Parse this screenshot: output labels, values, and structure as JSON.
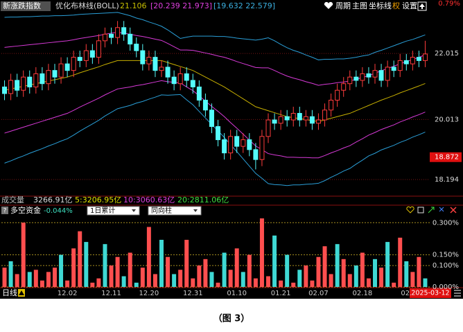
{
  "header": {
    "index_name": "新涨跌指数",
    "indicator": "优化布林线(BOLL)",
    "mid": "21.106",
    "inner": "[20.239  21.973]",
    "outer": "[19.632  22.579]",
    "menu": [
      "周期",
      "主图",
      "坐标线",
      "权",
      "设置"
    ],
    "corner_value": "0.79%"
  },
  "volume_bar": {
    "label": "成交量",
    "total": "3266.91亿",
    "ma5": "5:3206.95亿",
    "ma10": "10:3060.63亿",
    "ma20": "20:2811.06亿"
  },
  "fund_bar": {
    "help": "?",
    "name": "多空资金",
    "value": "-0.044%",
    "mode": "1日累计",
    "style": "同向柱"
  },
  "footer": {
    "period": "日线",
    "date": "2025-03-12",
    "caption": "（图 3）"
  },
  "chart_data": [
    {
      "type": "candlestick",
      "up_color": "#ff3c3c",
      "down_color": "#54fcfc",
      "grid": true,
      "categories": [
        null,
        null,
        null,
        null,
        null,
        null,
        null,
        null,
        null,
        null,
        "12.02",
        null,
        null,
        null,
        null,
        null,
        null,
        "12.11",
        null,
        null,
        null,
        null,
        null,
        "12.20",
        null,
        null,
        null,
        null,
        null,
        null,
        "12.31",
        null,
        null,
        null,
        null,
        null,
        null,
        "01.10",
        null,
        null,
        null,
        null,
        null,
        null,
        "01.21",
        null,
        null,
        null,
        null,
        null,
        "02.07",
        null,
        null,
        null,
        null,
        null,
        null,
        "02.18",
        null,
        null,
        null,
        null,
        null,
        null,
        "02.",
        null,
        null,
        null
      ],
      "open": [
        21.0,
        20.8,
        21.2,
        20.9,
        21.3,
        21.0,
        21.4,
        21.1,
        21.5,
        21.3,
        21.7,
        21.5,
        21.9,
        21.8,
        22.1,
        21.9,
        22.4,
        22.6,
        22.5,
        22.8,
        22.6,
        22.3,
        22.1,
        21.7,
        21.9,
        21.5,
        21.6,
        21.3,
        21.1,
        21.4,
        21.2,
        21.0,
        20.6,
        20.3,
        19.8,
        19.4,
        19.0,
        19.5,
        19.2,
        19.4,
        19.1,
        18.8,
        19.5,
        20.0,
        19.9,
        20.1,
        20.0,
        20.2,
        20.0,
        20.1,
        19.9,
        20.0,
        20.3,
        20.6,
        20.9,
        21.1,
        21.3,
        21.2,
        21.4,
        21.3,
        21.5,
        21.2,
        21.6,
        21.5,
        21.8,
        21.7,
        21.9,
        21.8
      ],
      "high": [
        21.2,
        21.4,
        21.4,
        21.5,
        21.5,
        21.6,
        21.6,
        21.7,
        21.7,
        21.9,
        21.9,
        22.1,
        22.1,
        22.3,
        22.3,
        22.6,
        22.8,
        22.8,
        23.0,
        23.0,
        22.8,
        22.5,
        22.3,
        22.1,
        22.1,
        21.8,
        21.8,
        21.5,
        21.6,
        21.6,
        21.4,
        21.2,
        20.8,
        20.5,
        20.0,
        19.6,
        19.7,
        19.7,
        19.6,
        19.6,
        19.3,
        19.7,
        20.2,
        20.2,
        20.3,
        20.3,
        20.4,
        20.4,
        20.3,
        20.3,
        20.2,
        20.5,
        20.8,
        21.1,
        21.3,
        21.5,
        21.5,
        21.6,
        21.6,
        21.7,
        21.7,
        21.8,
        21.8,
        22.0,
        22.0,
        22.1,
        22.1,
        22.4
      ],
      "low": [
        20.6,
        20.6,
        20.7,
        20.7,
        20.8,
        20.8,
        20.9,
        20.9,
        21.1,
        21.1,
        21.3,
        21.3,
        21.6,
        21.6,
        21.7,
        21.7,
        22.2,
        22.3,
        22.3,
        22.4,
        22.1,
        21.9,
        21.5,
        21.5,
        21.3,
        21.3,
        21.1,
        20.9,
        20.9,
        21.0,
        20.8,
        20.4,
        20.1,
        19.6,
        19.2,
        18.8,
        18.8,
        19.0,
        19.0,
        18.9,
        18.5,
        18.6,
        19.3,
        19.7,
        19.7,
        19.8,
        19.8,
        19.8,
        19.8,
        19.7,
        19.7,
        19.8,
        20.1,
        20.4,
        20.7,
        20.9,
        21.0,
        21.0,
        21.1,
        21.1,
        21.0,
        21.0,
        21.3,
        21.3,
        21.5,
        21.5,
        21.6,
        21.6
      ],
      "close": [
        20.8,
        21.2,
        20.9,
        21.3,
        21.0,
        21.4,
        21.1,
        21.5,
        21.3,
        21.7,
        21.5,
        21.9,
        21.8,
        22.1,
        21.9,
        22.4,
        22.6,
        22.5,
        22.8,
        22.6,
        22.3,
        22.1,
        21.7,
        21.9,
        21.5,
        21.6,
        21.3,
        21.1,
        21.4,
        21.2,
        21.0,
        20.6,
        20.3,
        19.8,
        19.4,
        19.0,
        19.5,
        19.2,
        19.4,
        19.1,
        18.8,
        19.5,
        20.0,
        19.9,
        20.1,
        20.0,
        20.2,
        20.0,
        20.1,
        19.9,
        20.0,
        20.3,
        20.6,
        20.9,
        21.1,
        21.3,
        21.2,
        21.4,
        21.3,
        21.5,
        21.2,
        21.6,
        21.5,
        21.8,
        21.7,
        21.9,
        21.8,
        22.0
      ],
      "series": [
        {
          "color": "#2a9fd8",
          "values": [
            23.11,
            23.12,
            23.12,
            23.13,
            23.13,
            23.14,
            23.15,
            23.15,
            23.16,
            23.16,
            23.17,
            23.18,
            23.2,
            23.21,
            23.22,
            23.23,
            23.24,
            23.25,
            23.26,
            23.21,
            23.16,
            23.09,
            23.04,
            22.97,
            22.91,
            22.84,
            22.73,
            22.6,
            22.47,
            22.51,
            22.54,
            22.54,
            22.54,
            22.54,
            22.53,
            22.53,
            22.51,
            22.48,
            22.46,
            22.44,
            22.42,
            22.45,
            22.49,
            22.4,
            22.29,
            22.19,
            22.11,
            22.05,
            21.97,
            21.9,
            21.82,
            21.84,
            21.84,
            21.85,
            21.85,
            21.87,
            21.9,
            21.94,
            21.97,
            22.05,
            22.11,
            22.18,
            22.25,
            22.32,
            22.39,
            22.44,
            22.51,
            22.579
          ]
        },
        {
          "color": "#d83ad8",
          "values": [
            22.2,
            22.22,
            22.24,
            22.26,
            22.28,
            22.3,
            22.32,
            22.34,
            22.36,
            22.38,
            22.4,
            22.43,
            22.47,
            22.5,
            22.53,
            22.56,
            22.6,
            22.63,
            22.66,
            22.63,
            22.6,
            22.56,
            22.53,
            22.49,
            22.45,
            22.41,
            22.32,
            22.22,
            22.12,
            22.12,
            22.11,
            22.07,
            22.03,
            21.99,
            21.94,
            21.9,
            21.84,
            21.77,
            21.71,
            21.65,
            21.59,
            21.58,
            21.58,
            21.5,
            21.41,
            21.33,
            21.27,
            21.22,
            21.16,
            21.11,
            21.05,
            21.08,
            21.1,
            21.13,
            21.15,
            21.18,
            21.23,
            21.29,
            21.34,
            21.42,
            21.49,
            21.56,
            21.63,
            21.7,
            21.77,
            21.83,
            21.9,
            21.973
          ]
        },
        {
          "color": "#c8b000",
          "values": [
            20.9,
            20.94,
            20.98,
            21.02,
            21.06,
            21.1,
            21.14,
            21.18,
            21.22,
            21.26,
            21.3,
            21.36,
            21.43,
            21.49,
            21.55,
            21.61,
            21.68,
            21.74,
            21.8,
            21.8,
            21.8,
            21.8,
            21.8,
            21.8,
            21.8,
            21.8,
            21.74,
            21.68,
            21.62,
            21.56,
            21.5,
            21.4,
            21.3,
            21.2,
            21.1,
            21.0,
            20.88,
            20.76,
            20.64,
            20.52,
            20.4,
            20.34,
            20.28,
            20.22,
            20.16,
            20.1,
            20.07,
            20.04,
            20.01,
            19.98,
            19.95,
            20.0,
            20.05,
            20.1,
            20.15,
            20.2,
            20.28,
            20.36,
            20.44,
            20.52,
            20.6,
            20.67,
            20.74,
            20.82,
            20.89,
            20.96,
            21.03,
            21.106
          ]
        },
        {
          "color": "#d83ad8",
          "values": [
            19.6,
            19.66,
            19.72,
            19.78,
            19.84,
            19.9,
            19.96,
            20.02,
            20.08,
            20.14,
            20.2,
            20.29,
            20.39,
            20.48,
            20.57,
            20.66,
            20.76,
            20.85,
            20.94,
            20.97,
            21.0,
            21.04,
            21.07,
            21.11,
            21.15,
            21.19,
            21.16,
            21.14,
            21.12,
            21.0,
            20.89,
            20.73,
            20.57,
            20.41,
            20.26,
            20.1,
            19.92,
            19.75,
            19.57,
            19.39,
            19.21,
            19.1,
            18.98,
            18.94,
            18.91,
            18.87,
            18.87,
            18.86,
            18.86,
            18.85,
            18.85,
            18.92,
            19.0,
            19.07,
            19.15,
            19.22,
            19.33,
            19.43,
            19.54,
            19.62,
            19.71,
            19.78,
            19.85,
            19.94,
            20.01,
            20.09,
            20.16,
            20.239
          ]
        },
        {
          "color": "#2a9fd8",
          "values": [
            18.69,
            18.76,
            18.84,
            18.91,
            18.99,
            19.06,
            19.13,
            19.21,
            19.28,
            19.36,
            19.43,
            19.54,
            19.66,
            19.77,
            19.88,
            19.99,
            20.12,
            20.23,
            20.34,
            20.39,
            20.44,
            20.51,
            20.56,
            20.63,
            20.69,
            20.76,
            20.75,
            20.76,
            20.77,
            20.61,
            20.46,
            20.26,
            20.06,
            19.86,
            19.67,
            19.47,
            19.25,
            19.04,
            18.82,
            18.6,
            18.38,
            18.23,
            18.07,
            18.04,
            18.03,
            18.01,
            18.03,
            18.03,
            18.05,
            18.06,
            18.08,
            18.16,
            18.26,
            18.35,
            18.45,
            18.53,
            18.66,
            18.78,
            18.91,
            18.99,
            19.09,
            19.16,
            19.23,
            19.32,
            19.39,
            19.48,
            19.55,
            19.632
          ]
        }
      ],
      "ylim": [
        17.7,
        23.3
      ],
      "yticks": [
        22.015,
        20.013,
        18.194
      ],
      "last_price": 18.872
    },
    {
      "type": "bar",
      "values": [
        0.09,
        0.12,
        0.06,
        0.3,
        0.07,
        0.08,
        0.03,
        0.07,
        0.09,
        0.15,
        0.03,
        0.18,
        0.26,
        0.21,
        0.02,
        0.04,
        0.2,
        0.1,
        0.14,
        0.05,
        0.16,
        0.02,
        0.09,
        0.28,
        0.06,
        0.22,
        0.14,
        0.06,
        0.08,
        0.22,
        0.04,
        0.1,
        0.13,
        0.07,
        0.02,
        0.16,
        0.08,
        0.18,
        0.07,
        0.15,
        0.04,
        0.32,
        0.05,
        0.24,
        0.03,
        0.15,
        0.02,
        0.08,
        0.1,
        0.03,
        0.14,
        0.19,
        0.06,
        0.2,
        0.13,
        0.06,
        0.1,
        0.16,
        0.04,
        0.13,
        0.09,
        0.21,
        0.02,
        0.23,
        0.12,
        0.07,
        0.14,
        0.04
      ],
      "colors": [
        "#ff4f4f",
        "#3fd9d4",
        "#ff4f4f",
        "#ff4f4f",
        "#3fd9d4",
        "#ff4f4f",
        "#ff4f4f",
        "#ff4f4f",
        "#ff4f4f",
        "#3fd9d4",
        "#ff4f4f",
        "#ff4f4f",
        "#ff4f4f",
        "#3fd9d4",
        "#ff4f4f",
        "#ff4f4f",
        "#3fd9d4",
        "#ff4f4f",
        "#ff4f4f",
        "#3fd9d4",
        "#ff4f4f",
        "#3fd9d4",
        "#ff4f4f",
        "#ff4f4f",
        "#ff4f4f",
        "#3fd9d4",
        "#ff4f4f",
        "#3fd9d4",
        "#ff4f4f",
        "#ff4f4f",
        "#ff4f4f",
        "#ff4f4f",
        "#ff4f4f",
        "#3fd9d4",
        "#ff4f4f",
        "#3fd9d4",
        "#ff4f4f",
        "#ff4f4f",
        "#3fd9d4",
        "#ff4f4f",
        "#ff4f4f",
        "#ff4f4f",
        "#ff4f4f",
        "#3fd9d4",
        "#ff4f4f",
        "#3fd9d4",
        "#ff4f4f",
        "#3fd9d4",
        "#ff4f4f",
        "#ff4f4f",
        "#ff4f4f",
        "#ff4f4f",
        "#ff4f4f",
        "#3fd9d4",
        "#ff4f4f",
        "#ff4f4f",
        "#3fd9d4",
        "#ff4f4f",
        "#ff4f4f",
        "#3fd9d4",
        "#ff4f4f",
        "#3fd9d4",
        "#ff4f4f",
        "#ff4f4f",
        "#3fd9d4",
        "#ff4f4f",
        "#ff4f4f",
        "#3fd9d4"
      ],
      "ylim": [
        0,
        0.33
      ],
      "yticks": [
        {
          "value": 0.3,
          "label": "0.300%"
        },
        {
          "value": 0.15,
          "label": "0.150%"
        },
        {
          "value": 0.1,
          "label": "0.100%"
        },
        {
          "value": 0,
          "label": "0.000%"
        }
      ]
    }
  ]
}
